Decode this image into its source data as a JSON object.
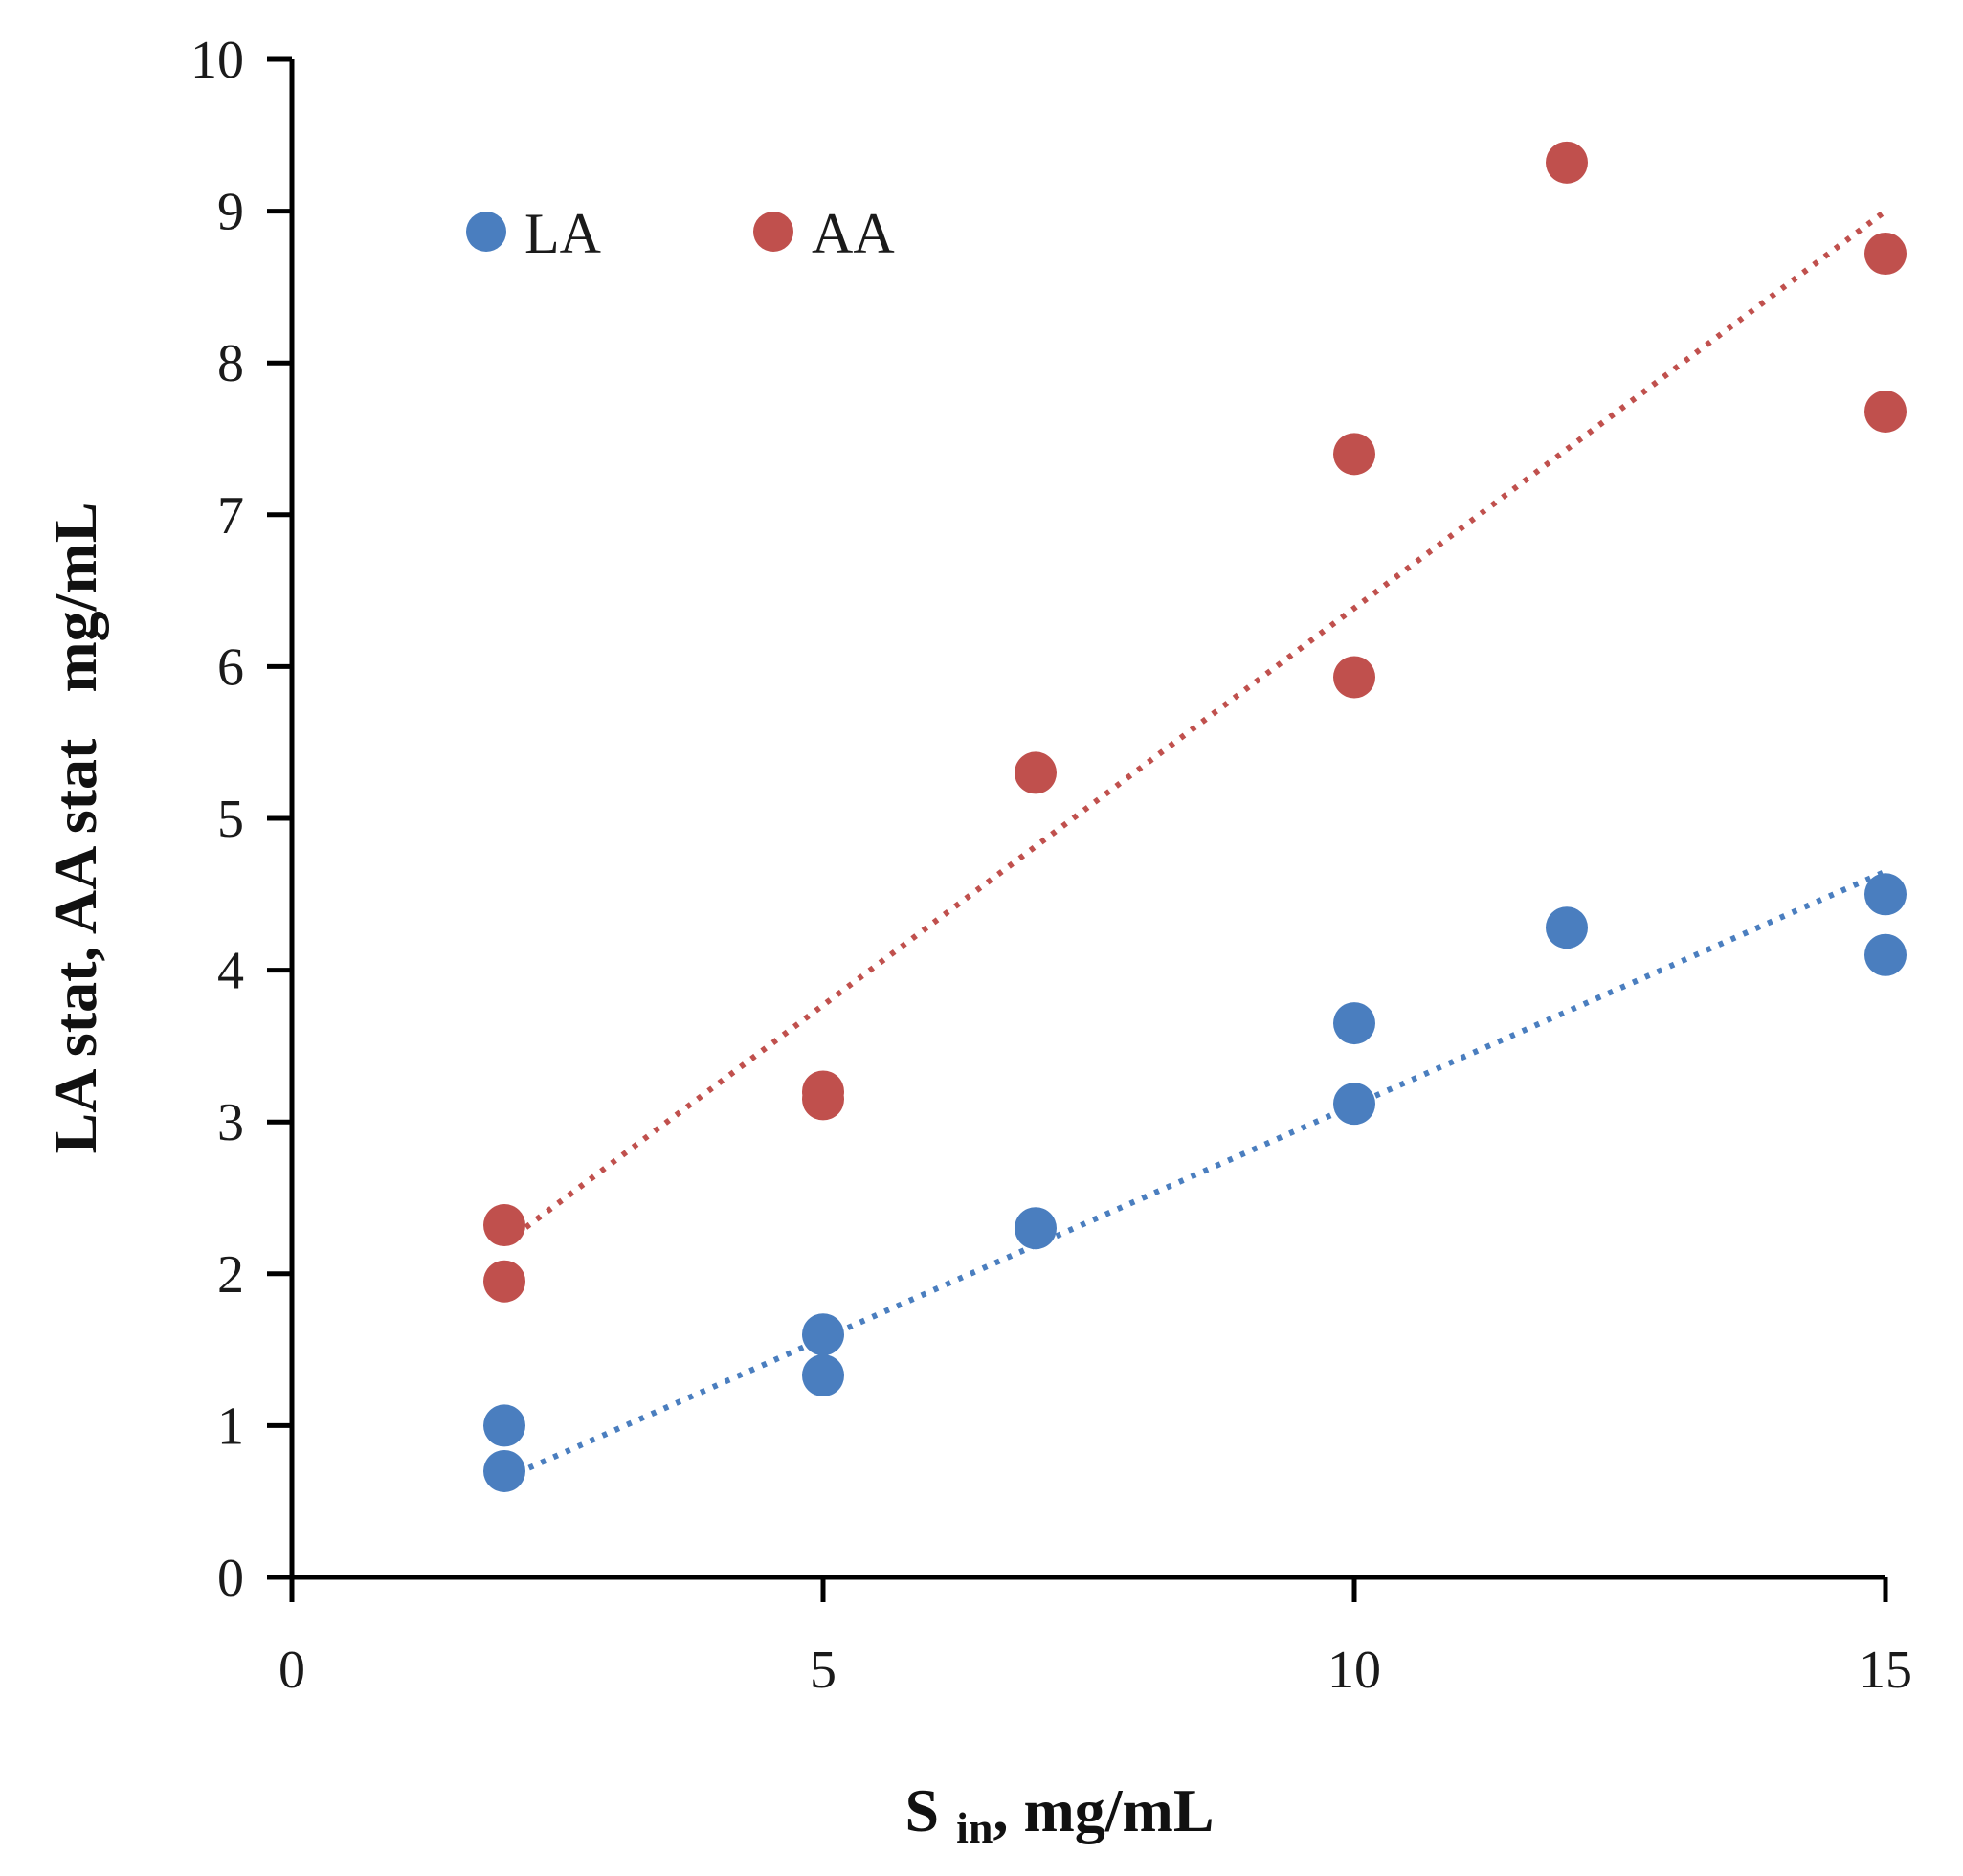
{
  "chart_data": {
    "type": "scatter",
    "title": "",
    "xlabel": "S",
    "xlabel_sub": "in",
    "xlabel_suffix": ", mg/mL",
    "ylabel": "LA stat, AA stat   mg/mL",
    "xlim": [
      0,
      15
    ],
    "ylim": [
      0,
      10
    ],
    "xticks": [
      0,
      5,
      10,
      15
    ],
    "yticks": [
      0,
      1,
      2,
      3,
      4,
      5,
      6,
      7,
      8,
      9,
      10
    ],
    "grid": false,
    "legend_position": "top-left",
    "series": [
      {
        "name": "LA",
        "color": "#4a7ebf",
        "x": [
          2,
          2,
          5,
          5,
          7,
          10,
          10,
          12,
          15,
          15
        ],
        "y": [
          0.7,
          1.0,
          1.33,
          1.6,
          2.3,
          3.12,
          3.65,
          4.28,
          4.1,
          4.5
        ],
        "trendline": {
          "style": "dotted",
          "from": [
            2,
            0.65
          ],
          "to": [
            15,
            4.65
          ]
        }
      },
      {
        "name": "AA",
        "color": "#c0504d",
        "x": [
          2,
          2,
          5,
          5,
          7,
          10,
          10,
          12,
          15,
          15
        ],
        "y": [
          1.95,
          2.32,
          3.15,
          3.2,
          5.3,
          5.93,
          7.4,
          9.32,
          7.68,
          8.72
        ],
        "trendline": {
          "style": "dotted",
          "from": [
            2,
            2.2
          ],
          "to": [
            15,
            9.0
          ]
        }
      }
    ]
  }
}
